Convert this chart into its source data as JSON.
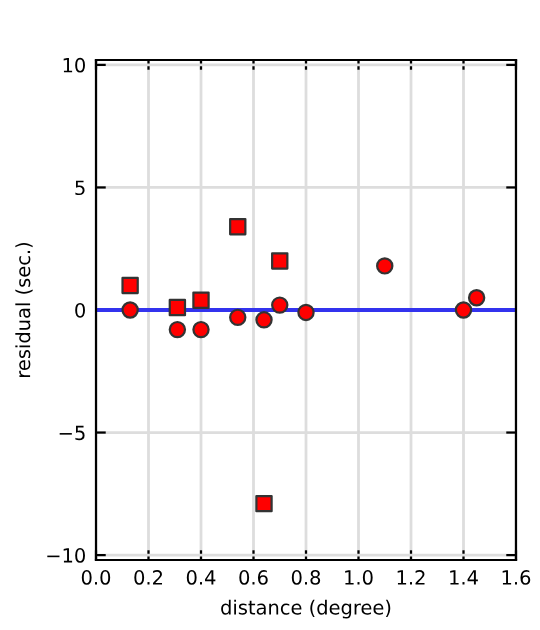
{
  "chart_data": {
    "type": "scatter",
    "xlabel": "distance (degree)",
    "ylabel": "residual (sec.)",
    "series": [
      {
        "color": "#ff0000",
        "marker": "square",
        "x": [
          0.13,
          0.31,
          0.4,
          0.54,
          0.7,
          0.64
        ],
        "values": [
          1.0,
          0.1,
          0.4,
          3.4,
          2.0,
          -7.9
        ]
      },
      {
        "color": "#ff0000",
        "marker": "circle",
        "x": [
          0.13,
          0.31,
          0.4,
          0.54,
          0.64,
          0.7,
          0.8,
          1.1,
          1.4,
          1.45
        ],
        "values": [
          0.0,
          -0.8,
          -0.8,
          -0.3,
          -0.4,
          0.2,
          -0.1,
          1.8,
          0.0,
          0.5
        ]
      }
    ],
    "ref_lines": [
      {
        "axis": "y",
        "value": 0,
        "color": "#3333ee",
        "line_style": "solid"
      }
    ],
    "xlim": [
      0,
      1.6
    ],
    "ylim": [
      -10.2,
      10.2
    ],
    "xticks": [
      {
        "value": 0,
        "label": "0.0"
      },
      {
        "value": 0.2,
        "label": "0.2"
      },
      {
        "value": 0.4,
        "label": "0.4"
      },
      {
        "value": 0.6,
        "label": "0.6"
      },
      {
        "value": 0.8,
        "label": "0.8"
      },
      {
        "value": 1.0,
        "label": "1.0"
      },
      {
        "value": 1.2,
        "label": "1.2"
      },
      {
        "value": 1.4,
        "label": "1.4"
      },
      {
        "value": 1.6,
        "label": "1.6"
      }
    ],
    "yticks": [
      {
        "value": -10,
        "label": "−10"
      },
      {
        "value": -5,
        "label": "−5"
      },
      0,
      5,
      10
    ],
    "grid": true
  }
}
